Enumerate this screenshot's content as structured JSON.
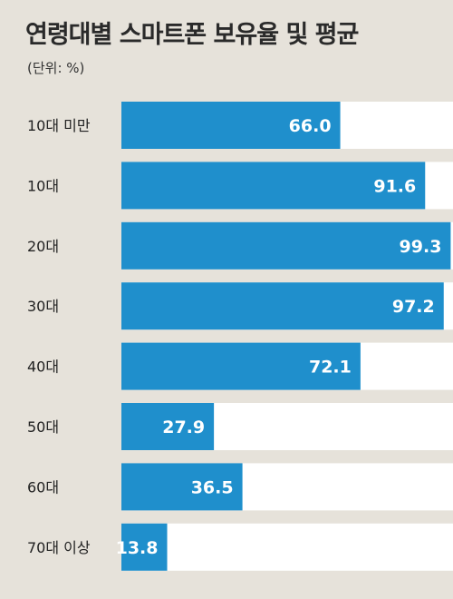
{
  "title": "연령대별 스마트폰 보유율 및 평균",
  "unit": "(단위: %)",
  "colors": {
    "bar": "#1f8fcc",
    "track": "#ffffff",
    "background": "#e6e2da",
    "value_text": "#ffffff"
  },
  "chart_data": {
    "type": "bar",
    "orientation": "horizontal",
    "categories": [
      "10대 미만",
      "10대",
      "20대",
      "30대",
      "40대",
      "50대",
      "60대",
      "70대 이상"
    ],
    "values": [
      66.0,
      91.6,
      99.3,
      97.2,
      72.1,
      27.9,
      36.5,
      13.8
    ],
    "value_labels": [
      "66.0",
      "91.6",
      "99.3",
      "97.2",
      "72.1",
      "27.9",
      "36.5",
      "13.8"
    ],
    "xlim": [
      0,
      100
    ]
  }
}
